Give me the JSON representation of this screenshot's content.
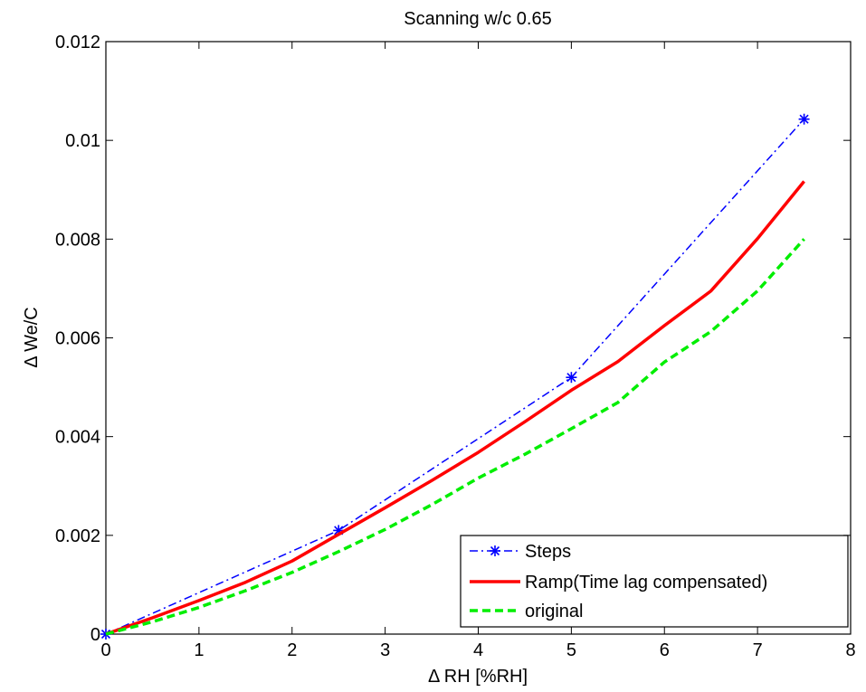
{
  "chart_data": {
    "type": "line",
    "title": "Scanning w/c 0.65",
    "xlabel": "Δ RH [%RH]",
    "ylabel": "Δ We/C",
    "xlim": [
      0,
      8
    ],
    "ylim": [
      0,
      0.012
    ],
    "xticks": [
      0,
      1,
      2,
      3,
      4,
      5,
      6,
      7,
      8
    ],
    "xtick_labels": [
      "0",
      "1",
      "2",
      "3",
      "4",
      "5",
      "6",
      "7",
      "8"
    ],
    "yticks": [
      0,
      0.002,
      0.004,
      0.006,
      0.008,
      0.01,
      0.012
    ],
    "ytick_labels": [
      "0",
      "0.002",
      "0.004",
      "0.006",
      "0.008",
      "0.01",
      "0.012"
    ],
    "grid": false,
    "legend_position": "bottom-right",
    "series": [
      {
        "name": "Steps",
        "color": "#0000ff",
        "line_style": "dash-dot",
        "marker": "asterisk",
        "x": [
          0,
          2.5,
          5,
          7.5
        ],
        "y": [
          0,
          0.0021,
          0.0052,
          0.01043
        ]
      },
      {
        "name": "Ramp(Time lag compensated)",
        "color": "#ff0000",
        "line_style": "solid",
        "marker": "none",
        "x": [
          0,
          0.5,
          1,
          1.5,
          2,
          2.5,
          3,
          3.5,
          4,
          4.5,
          5,
          5.5,
          6,
          6.5,
          7,
          7.5
        ],
        "y": [
          0,
          0.00033,
          0.00068,
          0.00105,
          0.00148,
          0.00202,
          0.00256,
          0.00311,
          0.00368,
          0.0043,
          0.00494,
          0.00552,
          0.00625,
          0.00695,
          0.00801,
          0.00917
        ]
      },
      {
        "name": "original",
        "color": "#00ee00",
        "line_style": "dashed",
        "marker": "none",
        "x": [
          0,
          0.5,
          1,
          1.5,
          2,
          2.5,
          3,
          3.5,
          4,
          4.5,
          5,
          5.5,
          6,
          6.5,
          7,
          7.5
        ],
        "y": [
          0,
          0.00025,
          0.00054,
          0.00088,
          0.00125,
          0.00167,
          0.00212,
          0.00262,
          0.00316,
          0.00364,
          0.00416,
          0.00469,
          0.00551,
          0.00613,
          0.00695,
          0.008
        ]
      }
    ]
  }
}
